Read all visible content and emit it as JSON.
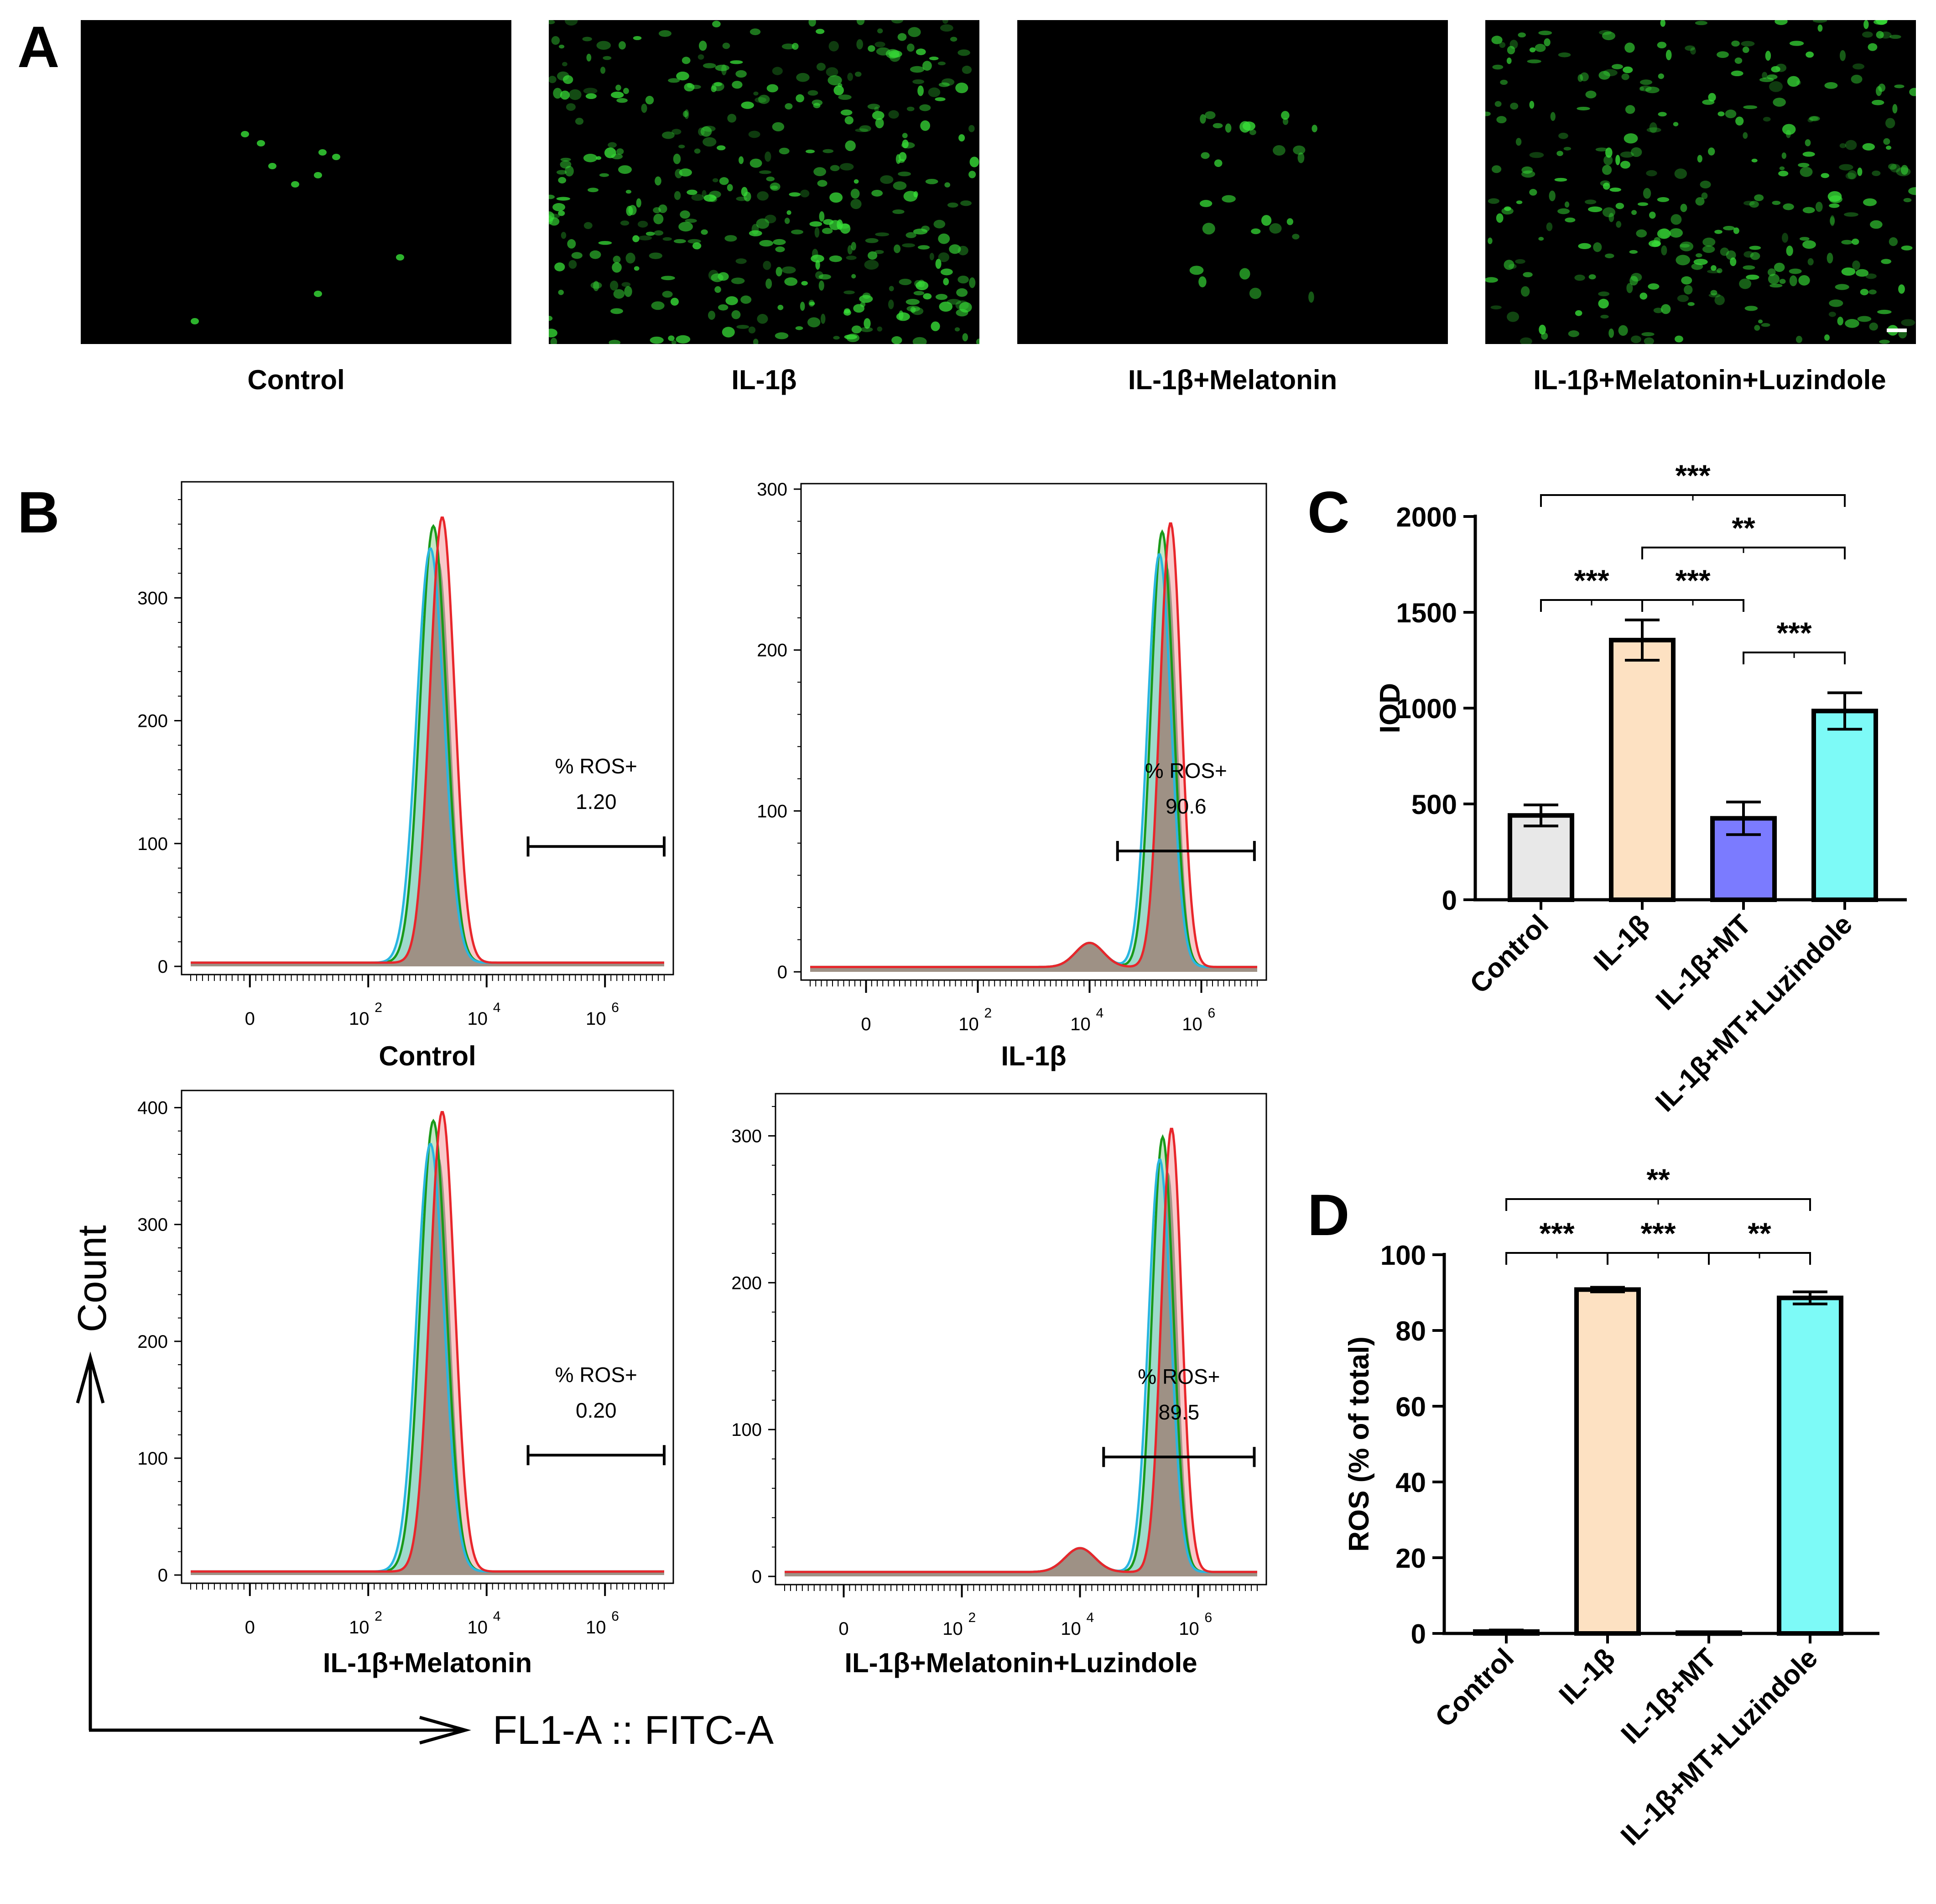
{
  "panels": {
    "a": {
      "letter": "A"
    },
    "b": {
      "letter": "B"
    },
    "c": {
      "letter": "C"
    },
    "d": {
      "letter": "D"
    }
  },
  "micrographs": [
    {
      "label": "Control",
      "density": 0.01
    },
    {
      "label": "IL-1β",
      "density": 0.75
    },
    {
      "label": "IL-1β+Melatonin",
      "density": 0.05
    },
    {
      "label": "IL-1β+Melatonin+Luzindole",
      "density": 0.6
    }
  ],
  "colors": {
    "green_series": "#1a9a1a",
    "blue_series": "#29b6e0",
    "red_series": "#e8262b",
    "overlap_fill": "#9c8e82",
    "bar_control": "#e8e8e8",
    "bar_il1b": "#fde1c2",
    "bar_il1b_mt": "#7b7bff",
    "bar_il1b_mt_luz": "#7dfaf7",
    "cell_stain": "#38e038"
  },
  "flow": {
    "y_axis_label": "Count",
    "x_axis_label": "FL1-A :: FITC-A",
    "x_ticks": [
      "0",
      "10",
      "10",
      "10"
    ],
    "x_tick_exponents": [
      "",
      "2",
      "4",
      "6"
    ],
    "panels": [
      {
        "label": "Control",
        "gate_name": "% ROS+",
        "gate_value": "1.20",
        "y_ticks": [
          "0",
          "100",
          "200",
          "300"
        ],
        "ymax": 390,
        "peak_log": 3.2,
        "width": 0.22,
        "height_frac": 0.93,
        "gate_range_log": [
          4.7,
          7.0
        ]
      },
      {
        "label": "IL-1β",
        "gate_name": "% ROS+",
        "gate_value": "90.6",
        "y_ticks": [
          "0",
          "100",
          "200",
          "300"
        ],
        "ymax": 300,
        "peak_log": 5.4,
        "width": 0.2,
        "height_frac": 0.92,
        "gate_range_log": [
          4.5,
          6.95
        ]
      },
      {
        "label": "IL-1β+Melatonin",
        "gate_name": "% ROS+",
        "gate_value": "0.20",
        "y_ticks": [
          "0",
          "100",
          "200",
          "300",
          "400"
        ],
        "ymax": 410,
        "peak_log": 3.2,
        "width": 0.22,
        "height_frac": 0.96,
        "gate_range_log": [
          4.7,
          7.0
        ]
      },
      {
        "label": "IL-1β+Melatonin+Luzindole",
        "gate_name": "% ROS+",
        "gate_value": "89.5",
        "y_ticks": [
          "0",
          "100",
          "200",
          "300"
        ],
        "ymax": 325,
        "peak_log": 5.5,
        "width": 0.18,
        "height_frac": 0.93,
        "gate_range_log": [
          4.4,
          6.95
        ]
      }
    ]
  },
  "chart_data": [
    {
      "type": "bar",
      "panel": "C",
      "categories": [
        "Control",
        "IL-1β",
        "IL-1β+MT",
        "IL-1β+MT+Luzindole"
      ],
      "values": [
        440,
        1355,
        425,
        985
      ],
      "errors": [
        55,
        105,
        85,
        95
      ],
      "ylabel": "IOD",
      "ylim": [
        0,
        2000
      ],
      "yticks": [
        "0",
        "500",
        "1000",
        "1500",
        "2000"
      ],
      "ytick_values": [
        0,
        500,
        1000,
        1500,
        2000
      ],
      "significance": [
        {
          "from": 0,
          "to": 3,
          "label": "***",
          "level": 0
        },
        {
          "from": 1,
          "to": 3,
          "label": "**",
          "level": 1
        },
        {
          "from": 0,
          "to": 1,
          "label": "***",
          "level": 2
        },
        {
          "from": 1,
          "to": 2,
          "label": "***",
          "level": 2
        },
        {
          "from": 2,
          "to": 3,
          "label": "***",
          "level": 3
        }
      ]
    },
    {
      "type": "bar",
      "panel": "D",
      "categories": [
        "Control",
        "IL-1β",
        "IL-1β+MT",
        "IL-1β+MT+Luzindole"
      ],
      "values": [
        0.5,
        90.8,
        0.2,
        88.6
      ],
      "errors": [
        0.4,
        0.6,
        0.1,
        1.6
      ],
      "ylabel": "ROS (% of total)",
      "ylim": [
        0,
        100
      ],
      "yticks": [
        "0",
        "20",
        "40",
        "60",
        "80",
        "100"
      ],
      "ytick_values": [
        0,
        20,
        40,
        60,
        80,
        100
      ],
      "significance": [
        {
          "from": 0,
          "to": 3,
          "label": "**",
          "level": 0
        },
        {
          "from": 0,
          "to": 1,
          "label": "***",
          "level": 1
        },
        {
          "from": 1,
          "to": 2,
          "label": "***",
          "level": 1
        },
        {
          "from": 2,
          "to": 3,
          "label": "**",
          "level": 1
        }
      ]
    }
  ]
}
